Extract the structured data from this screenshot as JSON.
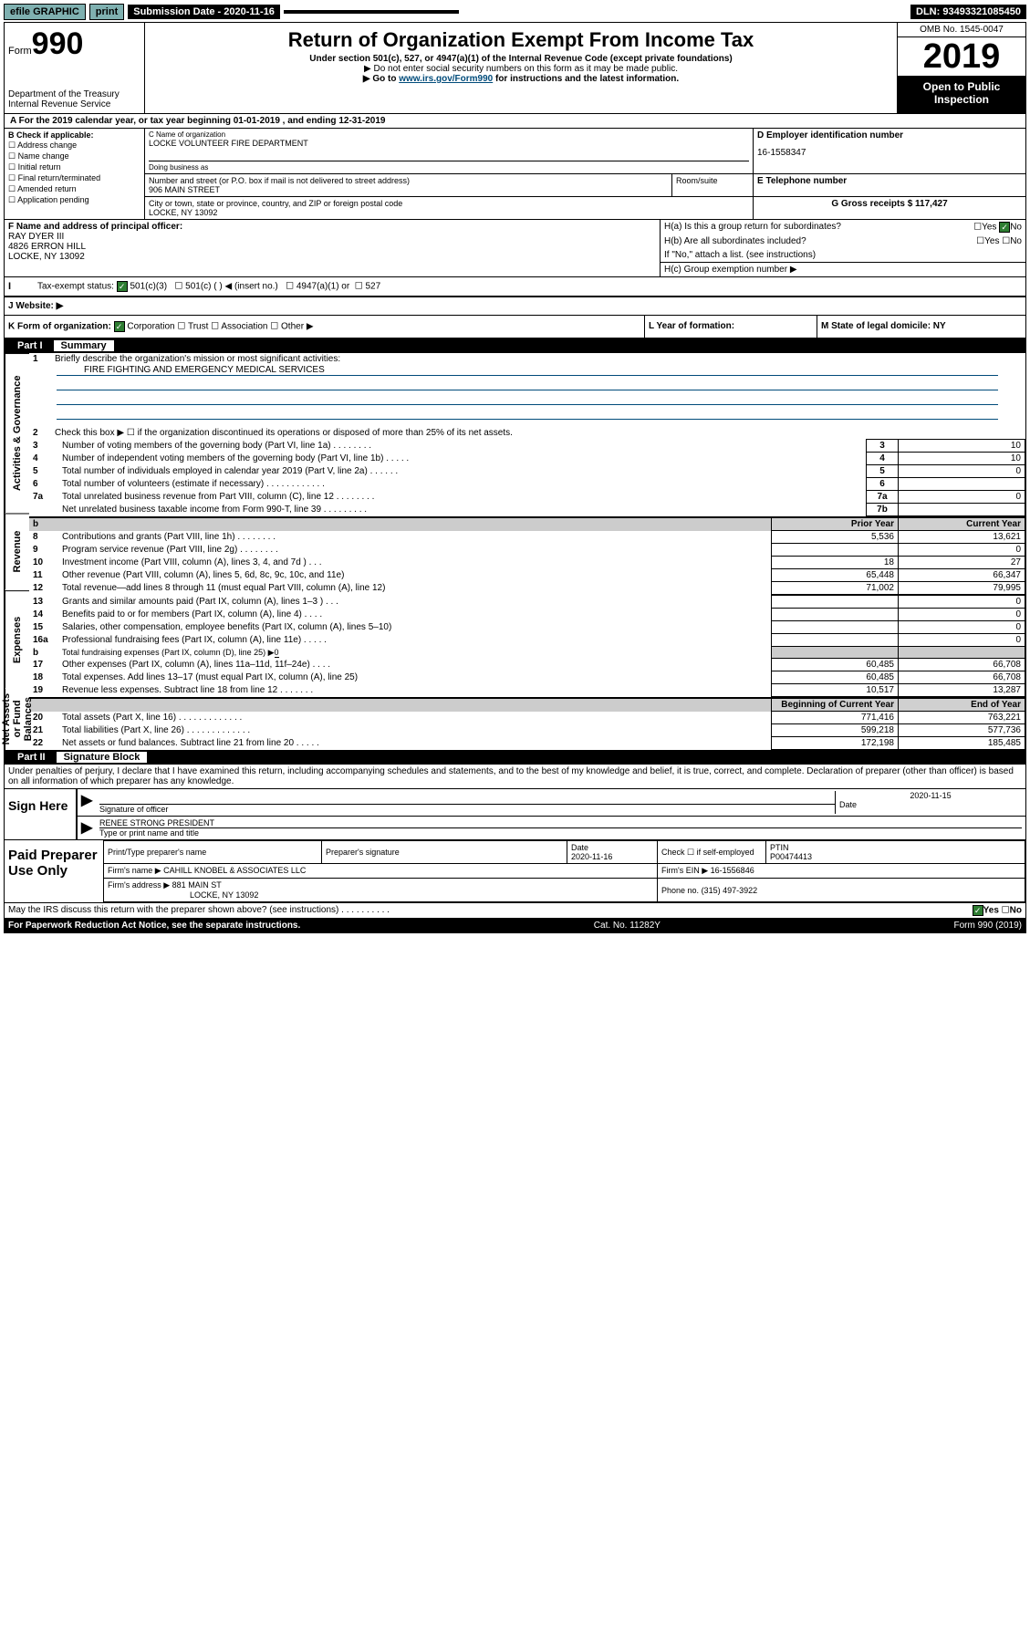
{
  "topbar": {
    "efile": "efile GRAPHIC",
    "print": "print",
    "sub_label": "Submission Date - 2020-11-16",
    "dln": "DLN: 93493321085450"
  },
  "header": {
    "form": "Form",
    "form_no": "990",
    "dept": "Department of the Treasury\nInternal Revenue Service",
    "title": "Return of Organization Exempt From Income Tax",
    "sub1": "Under section 501(c), 527, or 4947(a)(1) of the Internal Revenue Code (except private foundations)",
    "sub2": "▶ Do not enter social security numbers on this form as it may be made public.",
    "sub3_pre": "▶ Go to ",
    "sub3_link": "www.irs.gov/Form990",
    "sub3_post": " for instructions and the latest information.",
    "omb": "OMB No. 1545-0047",
    "year": "2019",
    "open": "Open to Public Inspection"
  },
  "rowA": "A For the 2019 calendar year, or tax year beginning 01-01-2019    , and ending 12-31-2019",
  "secB": {
    "label": "B Check if applicable:",
    "opts": [
      "Address change",
      "Name change",
      "Initial return",
      "Final return/terminated",
      "Amended return",
      "Application pending"
    ]
  },
  "secC": {
    "name_lbl": "C Name of organization",
    "name": "LOCKE VOLUNTEER FIRE DEPARTMENT",
    "dba_lbl": "Doing business as",
    "addr_lbl": "Number and street (or P.O. box if mail is not delivered to street address)",
    "addr": "906 MAIN STREET",
    "room_lbl": "Room/suite",
    "city_lbl": "City or town, state or province, country, and ZIP or foreign postal code",
    "city": "LOCKE, NY  13092"
  },
  "secD": {
    "lbl": "D Employer identification number",
    "val": "16-1558347"
  },
  "secE": {
    "lbl": "E Telephone number"
  },
  "secG": {
    "lbl": "G Gross receipts $",
    "val": "117,427"
  },
  "secF": {
    "lbl": "F  Name and address of principal officer:",
    "name": "RAY DYER III",
    "addr1": "4826 ERRON HILL",
    "addr2": "LOCKE, NY  13092"
  },
  "secH": {
    "ha": "H(a)  Is this a group return for subordinates?",
    "hb": "H(b)  Are all subordinates included?",
    "hb_note": "If \"No,\" attach a list. (see instructions)",
    "hc": "H(c)  Group exemption number ▶",
    "yes": "Yes",
    "no": "No"
  },
  "rowI": {
    "lbl": "Tax-exempt status:",
    "o1": "501(c)(3)",
    "o2": "501(c) (   ) ◀ (insert no.)",
    "o3": "4947(a)(1) or",
    "o4": "527"
  },
  "rowJ": {
    "lbl": "J    Website: ▶"
  },
  "rowK": {
    "left": "K Form of organization:",
    "corp": "Corporation",
    "trust": "Trust",
    "assoc": "Association",
    "other": "Other ▶",
    "mid": "L Year of formation:",
    "right": "M State of legal domicile: NY"
  },
  "part1": {
    "header_pt": "Part I",
    "header_tt": "Summary",
    "side1": "Activities & Governance",
    "side2": "Revenue",
    "side3": "Expenses",
    "side4": "Net Assets or Fund Balances",
    "line1": "Briefly describe the organization's mission or most significant activities:",
    "line1_val": "FIRE FIGHTING AND EMERGENCY MEDICAL SERVICES",
    "line2": "Check this box ▶ ☐  if the organization discontinued its operations or disposed of more than 25% of its net assets.",
    "rows_gov": [
      {
        "n": "3",
        "t": "Number of voting members of the governing body (Part VI, line 1a)   .    .    .    .    .    .    .    .",
        "b": "3",
        "v": "10"
      },
      {
        "n": "4",
        "t": "Number of independent voting members of the governing body (Part VI, line 1b)   .    .    .    .    .",
        "b": "4",
        "v": "10"
      },
      {
        "n": "5",
        "t": "Total number of individuals employed in calendar year 2019 (Part V, line 2a)   .    .    .    .    .    .",
        "b": "5",
        "v": "0"
      },
      {
        "n": "6",
        "t": "Total number of volunteers (estimate if necessary)   .    .    .    .    .    .    .    .    .    .    .    .",
        "b": "6",
        "v": ""
      },
      {
        "n": "7a",
        "t": "Total unrelated business revenue from Part VIII, column (C), line 12   .    .    .    .    .    .    .    .",
        "b": "7a",
        "v": "0"
      },
      {
        "n": "",
        "t": "Net unrelated business taxable income from Form 990-T, line 39   .    .    .    .    .    .    .    .    .",
        "b": "7b",
        "v": ""
      }
    ],
    "col_prior": "Prior Year",
    "col_current": "Current Year",
    "col_beg": "Beginning of Current Year",
    "col_end": "End of Year",
    "rows_rev": [
      {
        "n": "8",
        "t": "Contributions and grants (Part VIII, line 1h)   .    .    .    .    .    .    .    .",
        "p": "5,536",
        "c": "13,621"
      },
      {
        "n": "9",
        "t": "Program service revenue (Part VIII, line 2g)   .    .    .    .    .    .    .    .",
        "p": "",
        "c": "0"
      },
      {
        "n": "10",
        "t": "Investment income (Part VIII, column (A), lines 3, 4, and 7d )   .    .    .",
        "p": "18",
        "c": "27"
      },
      {
        "n": "11",
        "t": "Other revenue (Part VIII, column (A), lines 5, 6d, 8c, 9c, 10c, and 11e)",
        "p": "65,448",
        "c": "66,347"
      },
      {
        "n": "12",
        "t": "Total revenue—add lines 8 through 11 (must equal Part VIII, column (A), line 12)",
        "p": "71,002",
        "c": "79,995"
      }
    ],
    "rows_exp": [
      {
        "n": "13",
        "t": "Grants and similar amounts paid (Part IX, column (A), lines 1–3 )   .    .    .",
        "p": "",
        "c": "0"
      },
      {
        "n": "14",
        "t": "Benefits paid to or for members (Part IX, column (A), line 4)   .    .    .    .",
        "p": "",
        "c": "0"
      },
      {
        "n": "15",
        "t": "Salaries, other compensation, employee benefits (Part IX, column (A), lines 5–10)",
        "p": "",
        "c": "0"
      },
      {
        "n": "16a",
        "t": "Professional fundraising fees (Part IX, column (A), line 11e)   .    .    .    .    .",
        "p": "",
        "c": "0"
      }
    ],
    "line16b": "Total fundraising expenses (Part IX, column (D), line 25) ▶",
    "line16b_val": "0",
    "rows_exp2": [
      {
        "n": "17",
        "t": "Other expenses (Part IX, column (A), lines 11a–11d, 11f–24e)   .    .    .    .",
        "p": "60,485",
        "c": "66,708"
      },
      {
        "n": "18",
        "t": "Total expenses. Add lines 13–17 (must equal Part IX, column (A), line 25)",
        "p": "60,485",
        "c": "66,708"
      },
      {
        "n": "19",
        "t": "Revenue less expenses. Subtract line 18 from line 12   .    .    .    .    .    .    .",
        "p": "10,517",
        "c": "13,287"
      }
    ],
    "rows_net": [
      {
        "n": "20",
        "t": "Total assets (Part X, line 16)   .    .    .    .    .    .    .    .    .    .    .    .    .",
        "p": "771,416",
        "c": "763,221"
      },
      {
        "n": "21",
        "t": "Total liabilities (Part X, line 26)   .    .    .    .    .    .    .    .    .    .    .    .    .",
        "p": "599,218",
        "c": "577,736"
      },
      {
        "n": "22",
        "t": "Net assets or fund balances. Subtract line 21 from line 20   .    .    .    .    .",
        "p": "172,198",
        "c": "185,485"
      }
    ]
  },
  "part2": {
    "header_pt": "Part II",
    "header_tt": "Signature Block",
    "perjury": "Under penalties of perjury, I declare that I have examined this return, including accompanying schedules and statements, and to the best of my knowledge and belief, it is true, correct, and complete. Declaration of preparer (other than officer) is based on all information of which preparer has any knowledge."
  },
  "sign": {
    "here": "Sign Here",
    "sig_lbl": "Signature of officer",
    "date": "2020-11-15",
    "date_lbl": "Date",
    "name": "RENEE STRONG PRESIDENT",
    "name_lbl": "Type or print name and title"
  },
  "paid": {
    "label": "Paid Preparer Use Only",
    "h1": "Print/Type preparer's name",
    "h2": "Preparer's signature",
    "h3": "Date",
    "h3_val": "2020-11-16",
    "h4": "Check ☐ if self-employed",
    "h5": "PTIN",
    "h5_val": "P00474413",
    "firm_name_lbl": "Firm's name    ▶",
    "firm_name": "CAHILL KNOBEL & ASSOCIATES LLC",
    "firm_ein_lbl": "Firm's EIN ▶",
    "firm_ein": "16-1556846",
    "firm_addr_lbl": "Firm's address ▶",
    "firm_addr": "881 MAIN ST",
    "firm_city": "LOCKE, NY  13092",
    "phone_lbl": "Phone no.",
    "phone": "(315) 497-3922"
  },
  "footer": {
    "discuss": "May the IRS discuss this return with the preparer shown above? (see instructions)    .    .    .    .    .    .    .    .    .    .",
    "yes": "Yes",
    "no": "No",
    "paperwork": "For Paperwork Reduction Act Notice, see the separate instructions.",
    "cat": "Cat. No. 11282Y",
    "form": "Form 990 (2019)"
  }
}
